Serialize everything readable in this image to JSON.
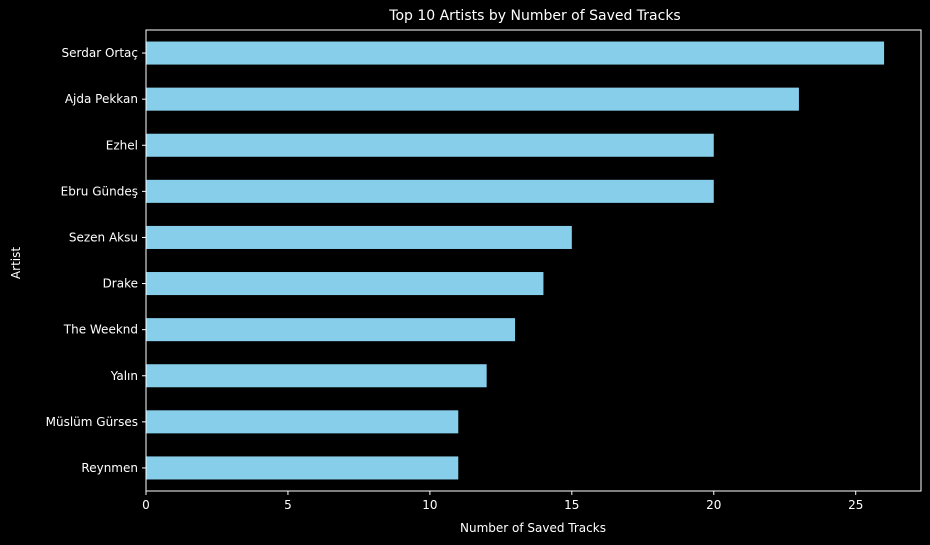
{
  "chart_data": {
    "type": "bar",
    "orientation": "horizontal",
    "title": "Top 10 Artists by Number of Saved Tracks",
    "xlabel": "Number of Saved Tracks",
    "ylabel": "Artist",
    "categories": [
      "Serdar Ortaç",
      "Ajda Pekkan",
      "Ezhel",
      "Ebru Gündeş",
      "Sezen Aksu",
      "Drake",
      "The Weeknd",
      "Yalın",
      "Müslüm Gürses",
      "Reynmen"
    ],
    "values": [
      26,
      23,
      20,
      20,
      15,
      14,
      13,
      12,
      11,
      11
    ],
    "xlim": [
      0,
      27.3
    ],
    "xticks": [
      0,
      5,
      10,
      15,
      20,
      25
    ],
    "grid": false,
    "colors": {
      "bar": "#87CEEB",
      "background": "#000000",
      "text": "#ffffff",
      "axis": "#ffffff"
    }
  }
}
